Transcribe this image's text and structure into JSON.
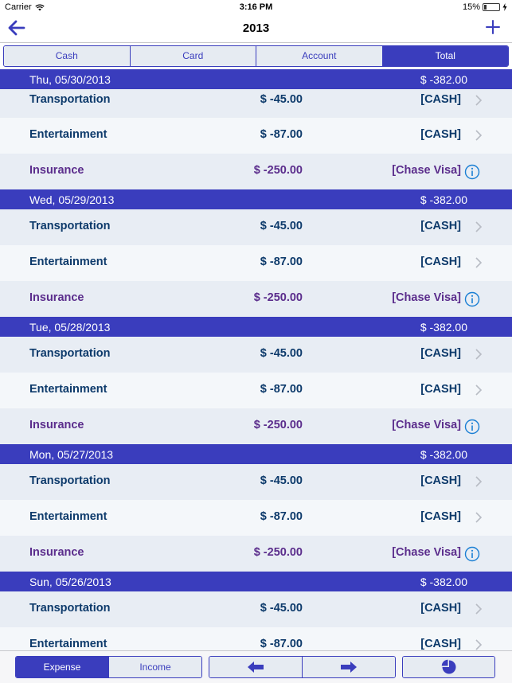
{
  "status": {
    "carrier": "Carrier",
    "time": "3:16 PM",
    "battery": "15%",
    "battery_level": 0.15
  },
  "nav": {
    "title": "2013"
  },
  "tabs": [
    {
      "label": "Cash",
      "active": false
    },
    {
      "label": "Card",
      "active": false
    },
    {
      "label": "Account",
      "active": false
    },
    {
      "label": "Total",
      "active": true
    }
  ],
  "days": [
    {
      "date": "Thu, 05/30/2013",
      "total": "$ -382.00",
      "items": [
        {
          "category": "Transportation",
          "amount": "$ -45.00",
          "account": "[CASH]",
          "type": "cash"
        },
        {
          "category": "Entertainment",
          "amount": "$ -87.00",
          "account": "[CASH]",
          "type": "cash"
        },
        {
          "category": "Insurance",
          "amount": "$ -250.00",
          "account": "[Chase Visa]",
          "type": "card"
        }
      ]
    },
    {
      "date": "Wed, 05/29/2013",
      "total": "$ -382.00",
      "items": [
        {
          "category": "Transportation",
          "amount": "$ -45.00",
          "account": "[CASH]",
          "type": "cash"
        },
        {
          "category": "Entertainment",
          "amount": "$ -87.00",
          "account": "[CASH]",
          "type": "cash"
        },
        {
          "category": "Insurance",
          "amount": "$ -250.00",
          "account": "[Chase Visa]",
          "type": "card"
        }
      ]
    },
    {
      "date": "Tue, 05/28/2013",
      "total": "$ -382.00",
      "items": [
        {
          "category": "Transportation",
          "amount": "$ -45.00",
          "account": "[CASH]",
          "type": "cash"
        },
        {
          "category": "Entertainment",
          "amount": "$ -87.00",
          "account": "[CASH]",
          "type": "cash"
        },
        {
          "category": "Insurance",
          "amount": "$ -250.00",
          "account": "[Chase Visa]",
          "type": "card"
        }
      ]
    },
    {
      "date": "Mon, 05/27/2013",
      "total": "$ -382.00",
      "items": [
        {
          "category": "Transportation",
          "amount": "$ -45.00",
          "account": "[CASH]",
          "type": "cash"
        },
        {
          "category": "Entertainment",
          "amount": "$ -87.00",
          "account": "[CASH]",
          "type": "cash"
        },
        {
          "category": "Insurance",
          "amount": "$ -250.00",
          "account": "[Chase Visa]",
          "type": "card"
        }
      ]
    },
    {
      "date": "Sun, 05/26/2013",
      "total": "$ -382.00",
      "items": [
        {
          "category": "Transportation",
          "amount": "$ -45.00",
          "account": "[CASH]",
          "type": "cash"
        },
        {
          "category": "Entertainment",
          "amount": "$ -87.00",
          "account": "[CASH]",
          "type": "cash"
        }
      ]
    }
  ],
  "toolbar": {
    "expense_label": "Expense",
    "income_label": "Income",
    "prev_icon": "arrow-left-icon",
    "next_icon": "arrow-right-icon",
    "chart_icon": "pie-chart-icon"
  },
  "colors": {
    "accent": "#3a3dbd",
    "text": "#0d3a6b",
    "card_text": "#5b2d8c",
    "info": "#1a7fd4"
  }
}
